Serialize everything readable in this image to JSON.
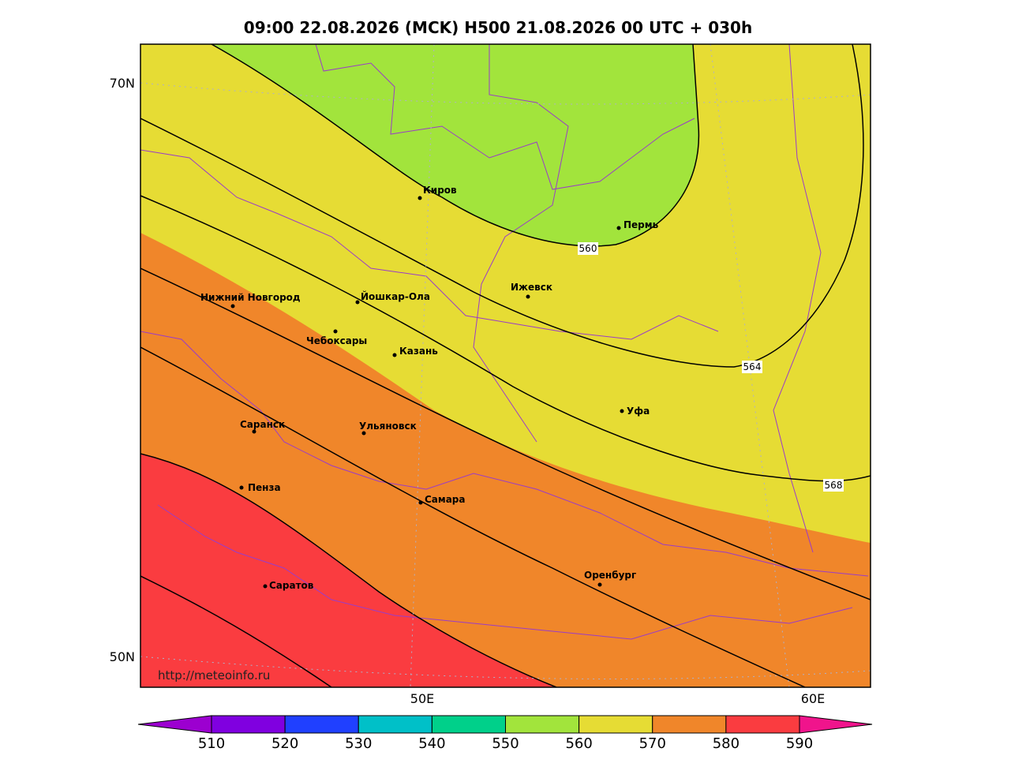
{
  "title": "09:00 22.08.2026 (MCK) H500  21.08.2026 00 UTC + 030h",
  "latitude_labels": [
    "70N",
    "50N"
  ],
  "longitude_labels": [
    "50E",
    "60E"
  ],
  "cities": [
    {
      "name": "Киров"
    },
    {
      "name": "Пермь"
    },
    {
      "name": "Ижевск"
    },
    {
      "name": "Йошкар-Ола"
    },
    {
      "name": "Нижний Новгород"
    },
    {
      "name": "Чебоксары"
    },
    {
      "name": "Казань"
    },
    {
      "name": "Уфа"
    },
    {
      "name": "Саранск"
    },
    {
      "name": "Ульяновск"
    },
    {
      "name": "Пенза"
    },
    {
      "name": "Самара"
    },
    {
      "name": "Оренбург"
    },
    {
      "name": "Саратов"
    }
  ],
  "contour_labels": [
    "560",
    "564",
    "568"
  ],
  "credit": "http://meteoinfo.ru",
  "colorbar": {
    "ticks": [
      510,
      520,
      530,
      540,
      550,
      560,
      570,
      580,
      590
    ],
    "colors": [
      "#9c00d0",
      "#8000e0",
      "#2040ff",
      "#00c0c8",
      "#00d08a",
      "#a2e43c",
      "#e6dc34",
      "#f0862a",
      "#fa3c40",
      "#f0148c"
    ]
  }
}
